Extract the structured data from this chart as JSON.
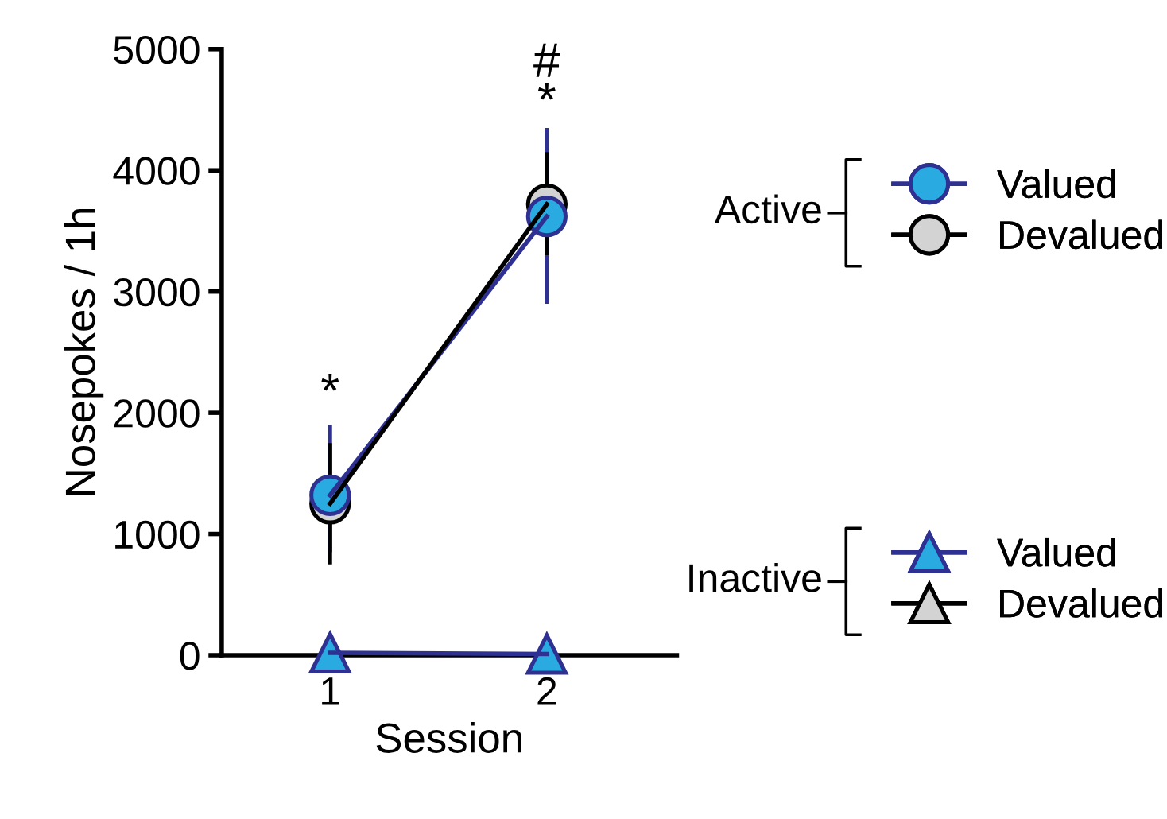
{
  "chart_data": {
    "type": "line",
    "xlabel": "Session",
    "ylabel": "Nosepokes / 1h",
    "categories": [
      "1",
      "2"
    ],
    "series": [
      {
        "name": "Valued",
        "color": "#29abe2",
        "marker": "circle",
        "values": [
          1320,
          3620
        ],
        "errors": [
          [
            850,
            1900
          ],
          [
            2900,
            4350
          ]
        ]
      },
      {
        "name": "Devalued",
        "color": "#d3d3d3",
        "marker": "circle",
        "values": [
          1250,
          3720
        ],
        "errors": [
          [
            750,
            1750
          ],
          [
            3300,
            4150
          ]
        ]
      },
      {
        "name": "Valued",
        "color": "#29abe2",
        "marker": "triangle",
        "values": [
          20,
          10
        ]
      },
      {
        "name": "Devalued",
        "color": "#d3d3d3",
        "marker": "triangle",
        "values": [
          null,
          null
        ]
      }
    ],
    "ylim": [
      0,
      5000
    ],
    "yticks": [
      0,
      1000,
      2000,
      3000,
      4000,
      5000
    ],
    "grid": false,
    "legend": "right",
    "annotations": [
      "Active",
      "Inactive",
      "*",
      "*",
      "#"
    ]
  }
}
